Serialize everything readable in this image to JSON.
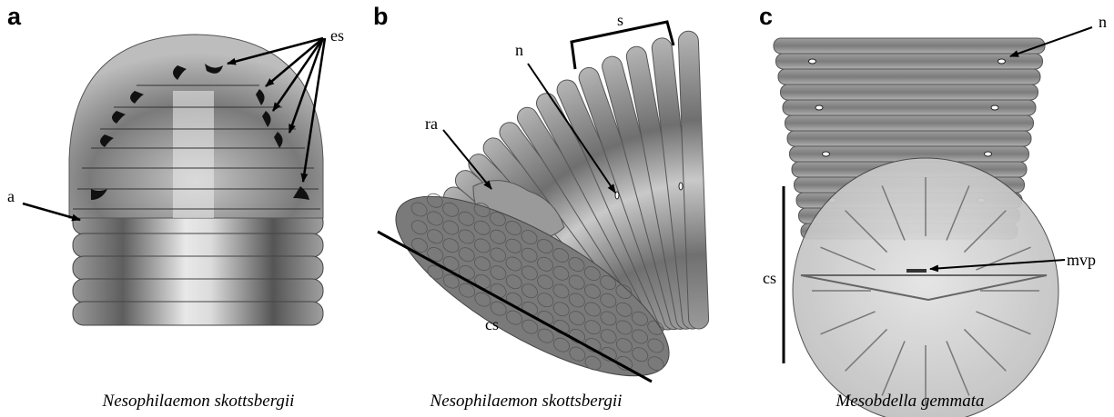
{
  "panels": [
    {
      "label": "a",
      "caption": "Nesophilaemon skottsbergii",
      "annotations": [
        "es",
        "a"
      ]
    },
    {
      "label": "b",
      "caption": "Nesophilaemon skottsbergii",
      "annotations": [
        "s",
        "n",
        "ra",
        "cs"
      ]
    },
    {
      "label": "c",
      "caption": "Mesobdella gemmata",
      "annotations": [
        "n",
        "cs",
        "mvp"
      ]
    }
  ]
}
